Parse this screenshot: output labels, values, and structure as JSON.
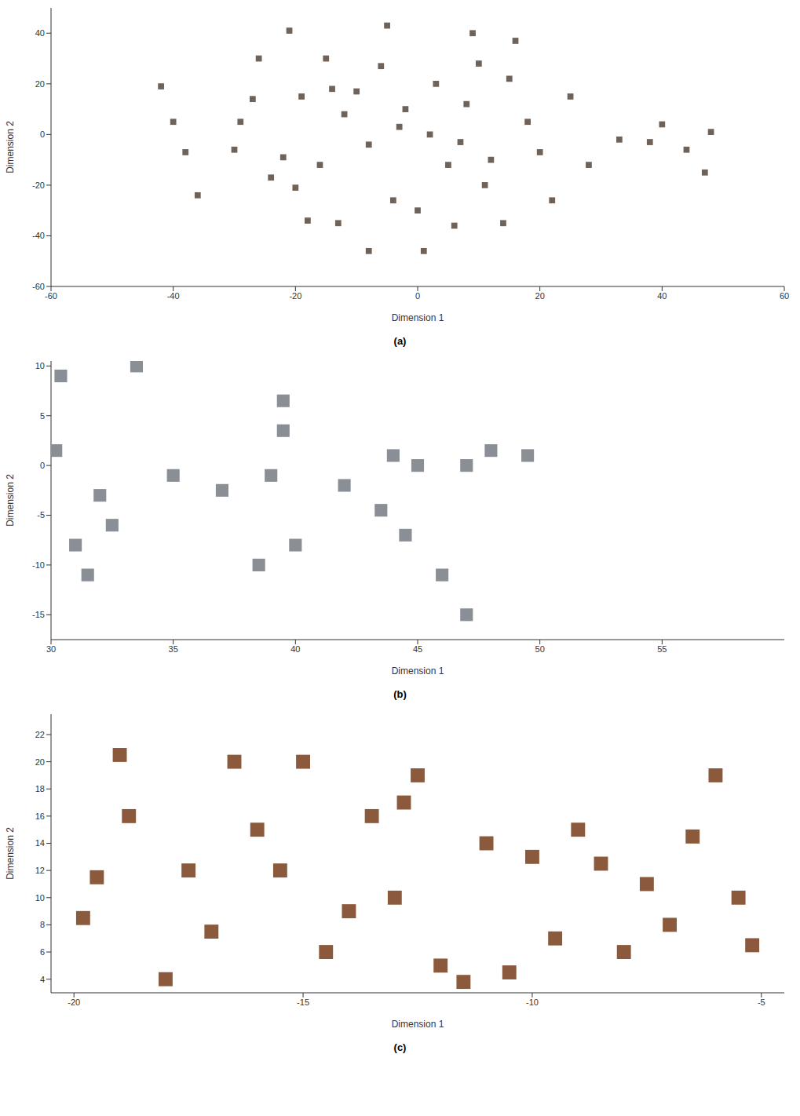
{
  "chart_data": [
    {
      "type": "scatter",
      "title": "(a)",
      "x_label": "Dimension 1",
      "y_label": "Dimension 2",
      "xlim": [
        -60,
        60
      ],
      "xticks": [
        -60,
        -40,
        -20,
        0,
        20,
        40,
        60
      ],
      "ylim": [
        -60,
        50
      ],
      "yticks": [
        -60,
        -40,
        -20,
        0,
        20,
        40
      ],
      "grid": false,
      "series": [
        {
          "color": "#6e6259",
          "marker": "square",
          "x": [
            -42,
            -40,
            -38,
            -36,
            -30,
            -29,
            -27,
            -26,
            -24,
            -21,
            -20,
            -19,
            -18,
            -16,
            -15,
            -13,
            -12,
            -10,
            -8,
            -6,
            -5,
            -4,
            -2,
            0,
            1,
            2,
            3,
            5,
            6,
            8,
            10,
            12,
            14,
            16,
            18,
            20,
            22,
            25,
            28,
            33,
            38,
            40,
            44,
            47,
            48,
            -8,
            9,
            -14,
            -3,
            7,
            15,
            -22,
            11
          ],
          "values": [
            19,
            5,
            -7,
            -24,
            -6,
            5,
            14,
            30,
            -17,
            41,
            -21,
            15,
            -34,
            -12,
            30,
            -35,
            8,
            17,
            -4,
            27,
            43,
            -26,
            10,
            -30,
            -46,
            0,
            20,
            -12,
            -36,
            12,
            28,
            -10,
            -35,
            37,
            5,
            -7,
            -26,
            15,
            -12,
            -2,
            -3,
            4,
            -6,
            -15,
            1,
            -46,
            40,
            18,
            3,
            -3,
            22,
            -9,
            -20
          ]
        }
      ]
    },
    {
      "type": "scatter",
      "title": "(b)",
      "x_label": "Dimension 1",
      "y_label": "Dimension 2",
      "xlim": [
        30,
        60
      ],
      "xticks": [
        30,
        35,
        40,
        45,
        50,
        55
      ],
      "ylim": [
        -17.5,
        10.5
      ],
      "yticks": [
        -15,
        -10,
        -5,
        0,
        5,
        10
      ],
      "grid": false,
      "series": [
        {
          "color": "#8a8f96",
          "marker": "square",
          "x": [
            30.4,
            33.5,
            30.2,
            32,
            32.5,
            31,
            31.5,
            35,
            37,
            39,
            39.5,
            39.5,
            38.5,
            40,
            42,
            43.5,
            45,
            44,
            47,
            48,
            49.5,
            44.5,
            46,
            47
          ],
          "values": [
            9,
            10,
            1.5,
            -3,
            -6,
            -8,
            -11,
            -1,
            -2.5,
            -1,
            6.5,
            3.5,
            -10,
            -8,
            -2,
            -4.5,
            0,
            1,
            0,
            1.5,
            1,
            -7,
            -11,
            -15
          ]
        }
      ]
    },
    {
      "type": "scatter",
      "title": "(c)",
      "x_label": "Dimension 1",
      "y_label": "Dimension 2",
      "xlim": [
        -20.5,
        -4.5
      ],
      "xticks": [
        -20,
        -15,
        -10,
        -5
      ],
      "ylim": [
        3,
        23.5
      ],
      "yticks": [
        4,
        6,
        8,
        10,
        12,
        14,
        16,
        18,
        20,
        22
      ],
      "grid": false,
      "series": [
        {
          "color": "#8b5a3c",
          "marker": "square",
          "x": [
            -19,
            -18.8,
            -19.5,
            -19.8,
            -17.5,
            -16.5,
            -17,
            -15,
            -15.5,
            -14.5,
            -13.5,
            -12.5,
            -12,
            -11,
            -10,
            -9.5,
            -9,
            -8,
            -7.5,
            -6.5,
            -6,
            -5.5,
            -5.2,
            -13,
            -14,
            -11.5,
            -8.5,
            -16,
            -18,
            -7,
            -10.5,
            -12.8
          ],
          "values": [
            20.5,
            16,
            11.5,
            8.5,
            12,
            20,
            7.5,
            20,
            12,
            6,
            16,
            19,
            5,
            14,
            13,
            7,
            15,
            6,
            11,
            14.5,
            19,
            10,
            6.5,
            10,
            9,
            3.8,
            12.5,
            15,
            4,
            8,
            4.5,
            17
          ]
        }
      ]
    }
  ]
}
